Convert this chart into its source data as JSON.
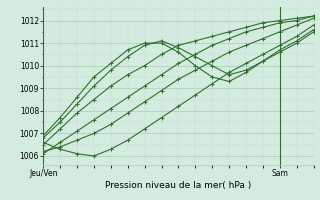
{
  "title": "Pression niveau de la mer( hPa )",
  "xlabel_left": "Jeu/Ven",
  "xlabel_right": "Sam",
  "ylabel_values": [
    1006,
    1007,
    1008,
    1009,
    1010,
    1011,
    1012
  ],
  "ylim": [
    1005.6,
    1012.6
  ],
  "xlim": [
    0,
    48
  ],
  "background_color": "#d4ece0",
  "grid_color_major": "#a8ccb4",
  "grid_color_minor": "#c0ddc8",
  "line_color": "#2d6e2d",
  "vline_color": "#2d6e2d",
  "series": [
    {
      "x": [
        0,
        3,
        6,
        9,
        12,
        15,
        18,
        21,
        24,
        27,
        30,
        33,
        36,
        39,
        42,
        45,
        48
      ],
      "y": [
        1006.1,
        1006.6,
        1007.1,
        1007.6,
        1008.1,
        1008.6,
        1009.1,
        1009.6,
        1010.1,
        1010.5,
        1010.9,
        1011.2,
        1011.5,
        1011.7,
        1011.9,
        1012.0,
        1012.2
      ]
    },
    {
      "x": [
        0,
        3,
        6,
        9,
        12,
        15,
        18,
        21,
        24,
        27,
        30,
        33,
        36,
        39,
        42,
        45,
        48
      ],
      "y": [
        1006.5,
        1007.2,
        1007.9,
        1008.5,
        1009.1,
        1009.6,
        1010.0,
        1010.5,
        1010.9,
        1011.1,
        1011.3,
        1011.5,
        1011.7,
        1011.9,
        1012.0,
        1012.1,
        1012.2
      ]
    },
    {
      "x": [
        0,
        3,
        6,
        9,
        12,
        15,
        18,
        21,
        24,
        27,
        30,
        33,
        36,
        39,
        42,
        45,
        48
      ],
      "y": [
        1006.2,
        1006.4,
        1006.7,
        1007.0,
        1007.4,
        1007.9,
        1008.4,
        1008.9,
        1009.4,
        1009.8,
        1010.2,
        1010.6,
        1010.9,
        1011.2,
        1011.5,
        1011.8,
        1012.1
      ]
    },
    {
      "x": [
        0,
        3,
        6,
        9,
        12,
        15,
        18,
        21,
        24,
        27,
        30,
        33,
        36,
        39,
        42,
        45,
        48
      ],
      "y": [
        1006.8,
        1007.5,
        1008.3,
        1009.1,
        1009.8,
        1010.4,
        1010.9,
        1011.1,
        1010.8,
        1010.4,
        1010.0,
        1009.6,
        1009.8,
        1010.2,
        1010.6,
        1011.0,
        1011.5
      ]
    },
    {
      "x": [
        0,
        3,
        6,
        9,
        12,
        15,
        18,
        21,
        24,
        27,
        30,
        33,
        36,
        39,
        42,
        45,
        48
      ],
      "y": [
        1006.9,
        1007.7,
        1008.6,
        1009.5,
        1010.1,
        1010.7,
        1011.0,
        1011.0,
        1010.6,
        1010.0,
        1009.5,
        1009.3,
        1009.7,
        1010.2,
        1010.7,
        1011.1,
        1011.6
      ]
    },
    {
      "x": [
        0,
        3,
        6,
        9,
        12,
        15,
        18,
        21,
        24,
        27,
        30,
        33,
        36,
        39,
        42,
        45,
        48
      ],
      "y": [
        1006.6,
        1006.3,
        1006.1,
        1006.0,
        1006.3,
        1006.7,
        1007.2,
        1007.7,
        1008.2,
        1008.7,
        1009.2,
        1009.7,
        1010.1,
        1010.5,
        1010.9,
        1011.3,
        1011.8
      ]
    }
  ],
  "vlines": [
    0,
    42
  ],
  "tick_fontsize": 5.5,
  "xlabel_fontsize": 6.5,
  "linewidth": 0.8,
  "markersize": 2.5,
  "markeredgewidth": 0.7
}
